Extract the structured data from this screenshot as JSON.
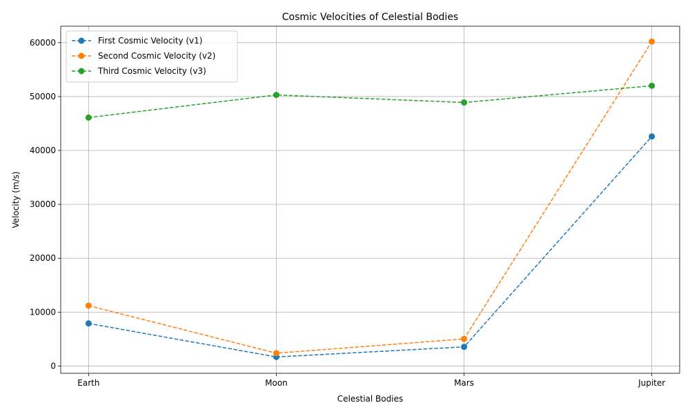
{
  "chart_data": {
    "type": "line",
    "title": "Cosmic Velocities of Celestial Bodies",
    "xlabel": "Celestial Bodies",
    "ylabel": "Velocity (m/s)",
    "categories": [
      "Earth",
      "Moon",
      "Mars",
      "Jupiter"
    ],
    "ylim": [
      -1350,
      63050
    ],
    "yticks": [
      0,
      10000,
      20000,
      30000,
      40000,
      50000,
      60000
    ],
    "grid": true,
    "legend_position": "top-left",
    "series": [
      {
        "name": "First Cosmic Velocity (v1)",
        "color": "#1f77b4",
        "line_style": "dashed",
        "marker": "circle",
        "values": [
          7900,
          1680,
          3550,
          42600
        ]
      },
      {
        "name": "Second Cosmic Velocity (v2)",
        "color": "#ff7f0e",
        "line_style": "dashed",
        "marker": "circle",
        "values": [
          11200,
          2380,
          5030,
          60200
        ]
      },
      {
        "name": "Third Cosmic Velocity (v3)",
        "color": "#2ca02c",
        "line_style": "dashed",
        "marker": "circle",
        "values": [
          46100,
          50300,
          48900,
          52000
        ]
      }
    ]
  }
}
